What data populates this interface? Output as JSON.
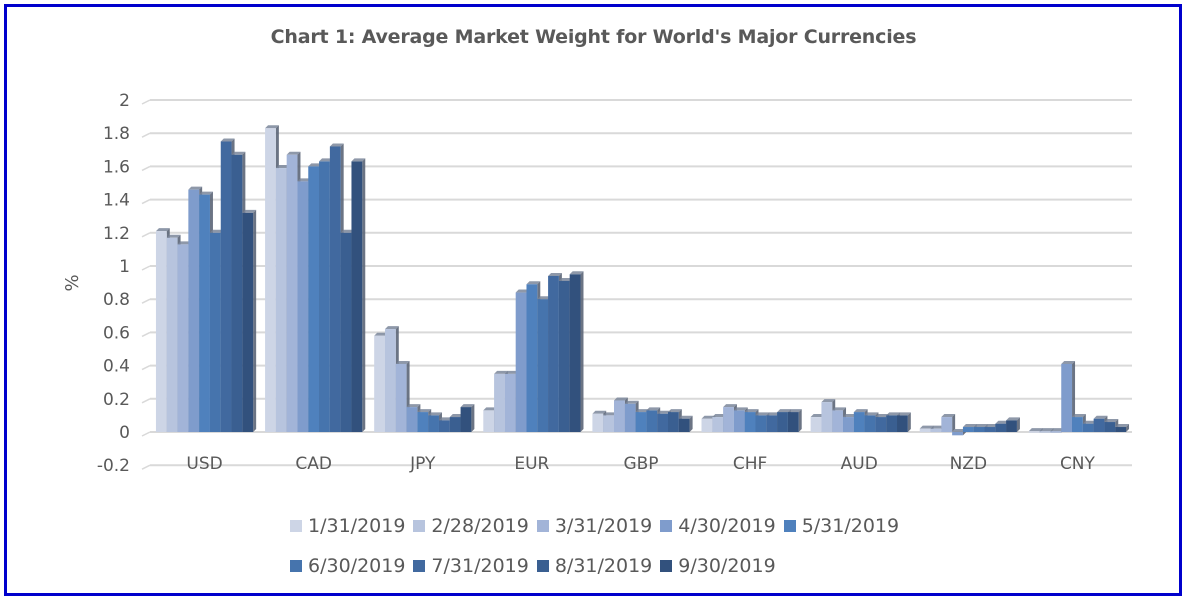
{
  "chart_data": {
    "type": "bar",
    "title": "Chart 1: Average Market Weight for World's Major Currencies",
    "xlabel": "",
    "ylabel": "%",
    "ylim": [
      -0.2,
      2
    ],
    "yticks": [
      "2",
      "1.8",
      "1.6",
      "1.4",
      "1.2",
      "1",
      "0.8",
      "0.6",
      "0.4",
      "0.2",
      "0",
      "-0.2"
    ],
    "ytick_values": [
      2,
      1.8,
      1.6,
      1.4,
      1.2,
      1,
      0.8,
      0.6,
      0.4,
      0.2,
      0,
      -0.2
    ],
    "grid": true,
    "legend_placement": "bottom",
    "categories": [
      "USD",
      "CAD",
      "JPY",
      "EUR",
      "GBP",
      "CHF",
      "AUD",
      "NZD",
      "CNY"
    ],
    "series": [
      {
        "name": "1/31/2019",
        "color": "#cdd5e6",
        "values": [
          1.21,
          1.83,
          0.58,
          0.13,
          0.11,
          0.08,
          0.09,
          0.02,
          0.005
        ]
      },
      {
        "name": "2/28/2019",
        "color": "#b7c4de",
        "values": [
          1.17,
          1.59,
          0.62,
          0.35,
          0.1,
          0.09,
          0.18,
          0.02,
          0.005
        ]
      },
      {
        "name": "3/31/2019",
        "color": "#a2b4d8",
        "values": [
          1.13,
          1.67,
          0.41,
          0.35,
          0.19,
          0.15,
          0.13,
          0.09,
          0.005
        ]
      },
      {
        "name": "4/30/2019",
        "color": "#7f9ccc",
        "values": [
          1.46,
          1.51,
          0.15,
          0.84,
          0.17,
          0.13,
          0.09,
          -0.02,
          0.41
        ]
      },
      {
        "name": "5/31/2019",
        "color": "#4f81bd",
        "values": [
          1.43,
          1.6,
          0.12,
          0.89,
          0.12,
          0.12,
          0.12,
          0.03,
          0.09
        ]
      },
      {
        "name": "6/30/2019",
        "color": "#4674ad",
        "values": [
          1.2,
          1.63,
          0.1,
          0.8,
          0.13,
          0.1,
          0.1,
          0.03,
          0.05
        ]
      },
      {
        "name": "7/31/2019",
        "color": "#41699f",
        "values": [
          1.75,
          1.72,
          0.07,
          0.94,
          0.11,
          0.1,
          0.09,
          0.03,
          0.08
        ]
      },
      {
        "name": "8/31/2019",
        "color": "#3a5f91",
        "values": [
          1.67,
          1.2,
          0.09,
          0.91,
          0.12,
          0.12,
          0.1,
          0.05,
          0.06
        ]
      },
      {
        "name": "9/30/2019",
        "color": "#32517d",
        "values": [
          1.32,
          1.63,
          0.15,
          0.95,
          0.08,
          0.12,
          0.1,
          0.07,
          0.03
        ]
      }
    ]
  },
  "frame_color": "#0000cc"
}
